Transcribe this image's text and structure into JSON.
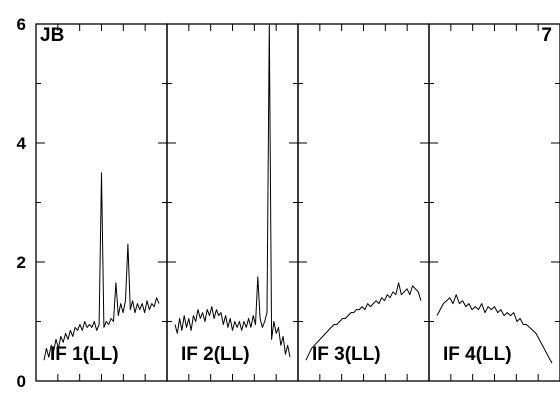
{
  "chart_data": {
    "type": "line",
    "title": "",
    "xlabel": "",
    "ylabel": "",
    "ylim": [
      0,
      6
    ],
    "yticks": [
      0,
      2,
      4,
      6
    ],
    "yticks_minor": [
      1,
      3,
      5
    ],
    "corner_labels": {
      "left": "JB",
      "right": "7"
    },
    "grid": false,
    "panels": [
      {
        "name": "IF 1(LL)",
        "values": [
          0.35,
          0.55,
          0.4,
          0.6,
          0.5,
          0.7,
          0.55,
          0.75,
          0.65,
          0.8,
          0.7,
          0.85,
          0.75,
          0.9,
          0.85,
          0.95,
          0.85,
          1.0,
          0.9,
          0.95,
          0.9,
          1.0,
          0.85,
          0.95,
          3.5,
          0.9,
          1.0,
          0.95,
          1.05,
          1.0,
          1.65,
          1.1,
          1.3,
          1.15,
          1.35,
          2.3,
          1.2,
          1.35,
          1.15,
          1.3,
          1.2,
          1.3,
          1.15,
          1.35,
          1.2,
          1.3,
          1.25,
          1.4,
          1.3
        ]
      },
      {
        "name": "IF 2(LL)",
        "values": [
          0.95,
          0.8,
          1.05,
          0.85,
          1.1,
          0.9,
          1.05,
          0.85,
          1.1,
          1.0,
          1.2,
          1.05,
          1.15,
          1.0,
          1.2,
          1.1,
          1.25,
          1.05,
          1.2,
          1.1,
          1.15,
          0.95,
          1.1,
          0.9,
          1.05,
          0.85,
          1.0,
          0.9,
          1.0,
          0.85,
          1.0,
          0.9,
          1.05,
          0.9,
          1.1,
          0.95,
          1.75,
          1.05,
          0.9,
          1.0,
          1.15,
          6.0,
          0.7,
          1.0,
          0.8,
          0.9,
          0.6,
          0.75,
          0.45,
          0.6,
          0.4
        ]
      },
      {
        "name": "IF 3(LL)",
        "values": [
          0.35,
          0.45,
          0.55,
          0.6,
          0.65,
          0.7,
          0.75,
          0.8,
          0.85,
          0.9,
          0.95,
          0.95,
          1.0,
          1.05,
          1.05,
          1.1,
          1.15,
          1.15,
          1.2,
          1.2,
          1.25,
          1.2,
          1.3,
          1.25,
          1.3,
          1.35,
          1.3,
          1.4,
          1.35,
          1.45,
          1.4,
          1.5,
          1.45,
          1.65,
          1.45,
          1.5,
          1.55,
          1.45,
          1.6,
          1.55,
          1.5,
          1.35
        ]
      },
      {
        "name": "IF 4(LL)",
        "values": [
          1.1,
          1.2,
          1.3,
          1.35,
          1.4,
          1.3,
          1.45,
          1.3,
          1.35,
          1.25,
          1.3,
          1.2,
          1.25,
          1.2,
          1.3,
          1.15,
          1.25,
          1.2,
          1.25,
          1.15,
          1.2,
          1.1,
          1.15,
          1.1,
          1.15,
          1.0,
          1.05,
          0.95,
          0.95,
          0.9,
          0.85,
          0.8,
          0.7,
          0.6,
          0.5,
          0.4,
          0.3
        ]
      }
    ]
  }
}
